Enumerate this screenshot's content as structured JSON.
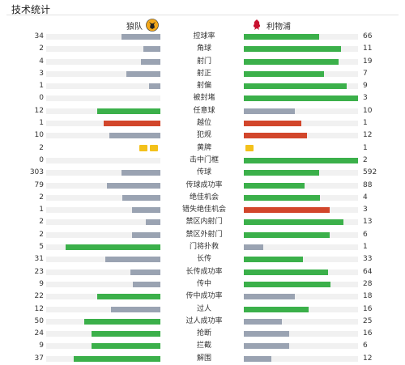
{
  "title": "技术统计",
  "teams": {
    "home": {
      "name": "狼队",
      "badge_icon": "wolf-badge-icon"
    },
    "away": {
      "name": "利物浦",
      "badge_icon": "liverbird-badge-icon"
    }
  },
  "colors": {
    "green": "#3bb04a",
    "gray": "#9aa3b2",
    "red": "#d2462b",
    "yellow": "#f3c11b",
    "track": "#f1f1f1"
  },
  "stats": [
    {
      "label": "控球率",
      "home": "34",
      "away": "66",
      "hf": 0.34,
      "af": 0.66,
      "hc": "gray",
      "ac": "green"
    },
    {
      "label": "角球",
      "home": "2",
      "away": "11",
      "hf": 0.15,
      "af": 0.85,
      "hc": "gray",
      "ac": "green"
    },
    {
      "label": "射门",
      "home": "4",
      "away": "19",
      "hf": 0.17,
      "af": 0.83,
      "hc": "gray",
      "ac": "green"
    },
    {
      "label": "射正",
      "home": "3",
      "away": "7",
      "hf": 0.3,
      "af": 0.7,
      "hc": "gray",
      "ac": "green"
    },
    {
      "label": "射偏",
      "home": "1",
      "away": "9",
      "hf": 0.1,
      "af": 0.9,
      "hc": "gray",
      "ac": "green"
    },
    {
      "label": "被封堵",
      "home": "0",
      "away": "3",
      "hf": 0,
      "af": 1.0,
      "hc": "gray",
      "ac": "green"
    },
    {
      "label": "任意球",
      "home": "12",
      "away": "10",
      "hf": 0.55,
      "af": 0.45,
      "hc": "green",
      "ac": "gray"
    },
    {
      "label": "越位",
      "home": "1",
      "away": "1",
      "hf": 0.5,
      "af": 0.5,
      "hc": "red",
      "ac": "red"
    },
    {
      "label": "犯规",
      "home": "10",
      "away": "12",
      "hf": 0.45,
      "af": 0.55,
      "hc": "gray",
      "ac": "red"
    },
    {
      "label": "黄牌",
      "home": "2",
      "away": "1",
      "cards": true,
      "hcards": 2,
      "acards": 1
    },
    {
      "label": "击中门框",
      "home": "0",
      "away": "2",
      "hf": 0,
      "af": 1.0,
      "hc": "gray",
      "ac": "green"
    },
    {
      "label": "传球",
      "home": "303",
      "away": "592",
      "hf": 0.34,
      "af": 0.66,
      "hc": "gray",
      "ac": "green"
    },
    {
      "label": "传球成功率",
      "home": "79",
      "away": "88",
      "hf": 0.47,
      "af": 0.53,
      "hc": "gray",
      "ac": "green"
    },
    {
      "label": "绝佳机会",
      "home": "2",
      "away": "4",
      "hf": 0.33,
      "af": 0.67,
      "hc": "gray",
      "ac": "green"
    },
    {
      "label": "错失绝佳机会",
      "home": "1",
      "away": "3",
      "hf": 0.25,
      "af": 0.75,
      "hc": "gray",
      "ac": "red"
    },
    {
      "label": "禁区内射门",
      "home": "2",
      "away": "13",
      "hf": 0.13,
      "af": 0.87,
      "hc": "gray",
      "ac": "green"
    },
    {
      "label": "禁区外射门",
      "home": "2",
      "away": "6",
      "hf": 0.25,
      "af": 0.75,
      "hc": "gray",
      "ac": "green"
    },
    {
      "label": "门将扑救",
      "home": "5",
      "away": "1",
      "hf": 0.83,
      "af": 0.17,
      "hc": "green",
      "ac": "gray"
    },
    {
      "label": "长传",
      "home": "31",
      "away": "33",
      "hf": 0.48,
      "af": 0.52,
      "hc": "gray",
      "ac": "green"
    },
    {
      "label": "长传成功率",
      "home": "23",
      "away": "64",
      "hf": 0.26,
      "af": 0.74,
      "hc": "gray",
      "ac": "green"
    },
    {
      "label": "传中",
      "home": "9",
      "away": "28",
      "hf": 0.24,
      "af": 0.76,
      "hc": "gray",
      "ac": "green"
    },
    {
      "label": "传中成功率",
      "home": "22",
      "away": "18",
      "hf": 0.55,
      "af": 0.45,
      "hc": "green",
      "ac": "gray"
    },
    {
      "label": "过人",
      "home": "12",
      "away": "16",
      "hf": 0.43,
      "af": 0.57,
      "hc": "gray",
      "ac": "green"
    },
    {
      "label": "过人成功率",
      "home": "50",
      "away": "25",
      "hf": 0.67,
      "af": 0.33,
      "hc": "green",
      "ac": "gray"
    },
    {
      "label": "抢断",
      "home": "24",
      "away": "16",
      "hf": 0.6,
      "af": 0.4,
      "hc": "green",
      "ac": "gray"
    },
    {
      "label": "拦截",
      "home": "9",
      "away": "6",
      "hf": 0.6,
      "af": 0.4,
      "hc": "green",
      "ac": "gray"
    },
    {
      "label": "解围",
      "home": "37",
      "away": "12",
      "hf": 0.76,
      "af": 0.24,
      "hc": "green",
      "ac": "gray"
    }
  ]
}
